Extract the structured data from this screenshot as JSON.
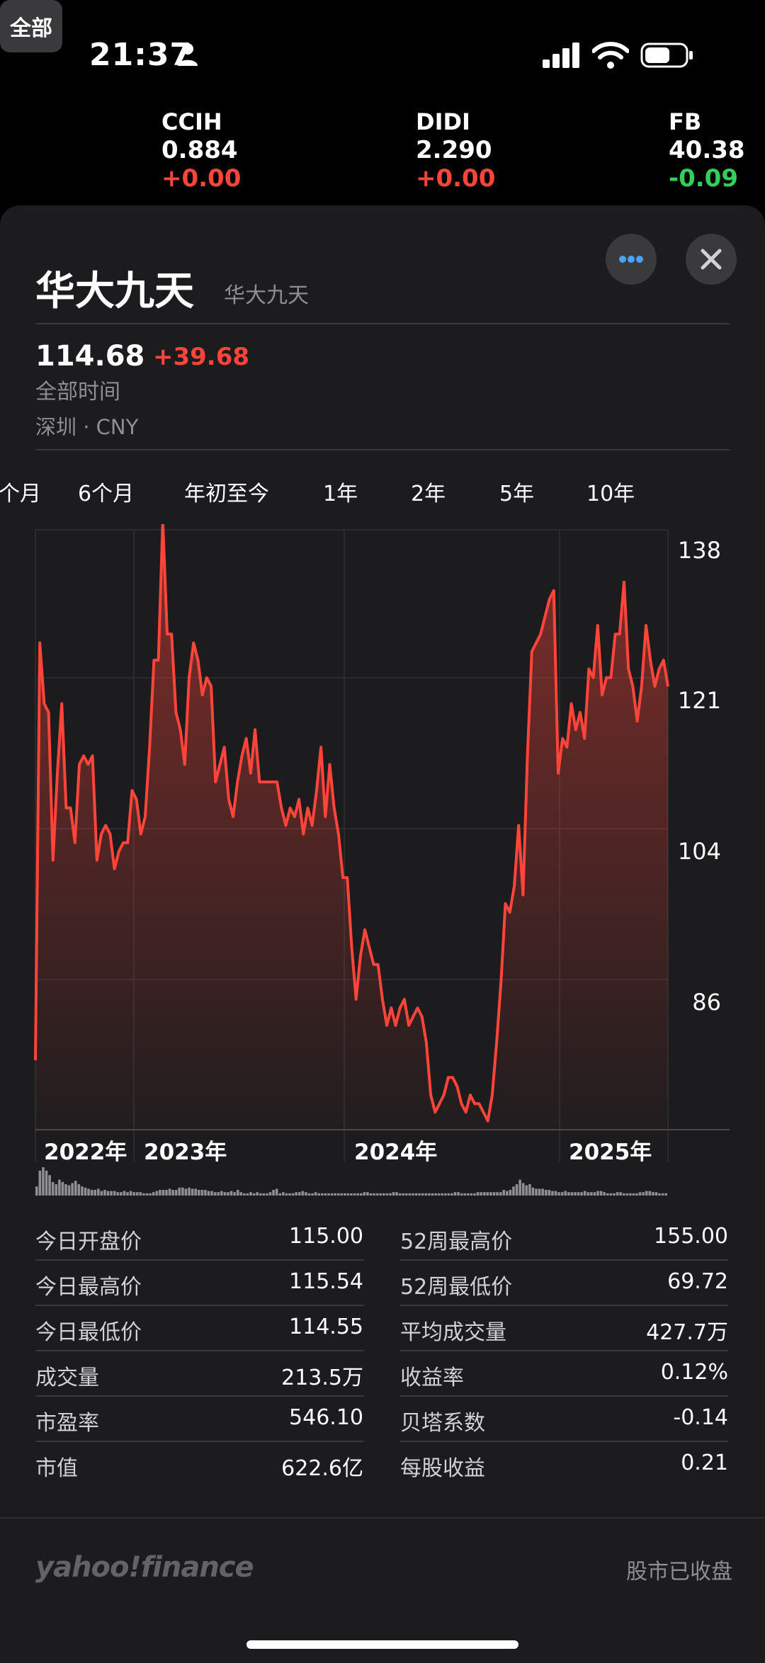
{
  "status_bar": {
    "time": "21:37"
  },
  "ticker": [
    {
      "symbol": "CCIH",
      "price": "0.884",
      "change": "+0.00",
      "color": "#ff453a"
    },
    {
      "symbol": "DIDI",
      "price": "2.290",
      "change": "+0.00",
      "color": "#ff453a"
    },
    {
      "symbol": "FB",
      "price": "40.38",
      "change": "-0.09",
      "color": "#30d158"
    }
  ],
  "stock": {
    "name": "华大九天",
    "subname": "华大九天",
    "price": "114.68",
    "change": "+39.68",
    "period": "全部时间",
    "exchange": "深圳 · CNY"
  },
  "tabs": [
    "个月",
    "6个月",
    "年初至今",
    "1年",
    "2年",
    "5年",
    "10年",
    "全部"
  ],
  "chart_data": {
    "type": "line",
    "x_tick_labels": [
      "2022年",
      "2023年",
      "2024年",
      "2025年"
    ],
    "y_tick_labels": [
      "138",
      "121",
      "104",
      "86"
    ],
    "ylim": [
      69,
      138
    ],
    "y": [
      77,
      125,
      118,
      117,
      100,
      110,
      118,
      106,
      106,
      102,
      111,
      112,
      111,
      112,
      100,
      103,
      104,
      103,
      99,
      101,
      102,
      102,
      108,
      107,
      103,
      105,
      113,
      123,
      123,
      139,
      126,
      126,
      117,
      115,
      111,
      121,
      125,
      123,
      119,
      121,
      120,
      109,
      111,
      113,
      107,
      105,
      109,
      112,
      114,
      110,
      115,
      109,
      109,
      109,
      109,
      109,
      106,
      104,
      106,
      105,
      107,
      103,
      106,
      104,
      108,
      113,
      105,
      111,
      106,
      103,
      98,
      98,
      90,
      84,
      89,
      92,
      90,
      88,
      88,
      84,
      81,
      83,
      81,
      83,
      84,
      81,
      82,
      83,
      82,
      79,
      73,
      71,
      72,
      73,
      75,
      75,
      74,
      72,
      71,
      73,
      72,
      72,
      71,
      70,
      73,
      79,
      86,
      95,
      94,
      97,
      104,
      96,
      112,
      124,
      125,
      126,
      128,
      130,
      131,
      110,
      114,
      113,
      118,
      115,
      117,
      114,
      122,
      121,
      127,
      119,
      121,
      121,
      126,
      126,
      132,
      122,
      120,
      116,
      120,
      127,
      123,
      120,
      122,
      123,
      120
    ],
    "fill_color": "#ff453a",
    "volume_bars": [
      8,
      22,
      25,
      22,
      18,
      12,
      10,
      14,
      12,
      10,
      9,
      11,
      13,
      10,
      8,
      7,
      6,
      5,
      5,
      6,
      4,
      5,
      4,
      4,
      4,
      3,
      3,
      4,
      3,
      4,
      3,
      3,
      3,
      2,
      2,
      2,
      3,
      4,
      5,
      5,
      5,
      6,
      5,
      5,
      7,
      7,
      6,
      7,
      6,
      6,
      5,
      5,
      5,
      4,
      4,
      3,
      3,
      4,
      3,
      3,
      4,
      3,
      5,
      3,
      2,
      2,
      3,
      2,
      3,
      2,
      2,
      2,
      3,
      5,
      6,
      2,
      3,
      2,
      2,
      2,
      3,
      3,
      4,
      3,
      2,
      2,
      3,
      2,
      2,
      2,
      2,
      2,
      2,
      2,
      2,
      2,
      2,
      2,
      2,
      2,
      2,
      3,
      3,
      2,
      2,
      2,
      2,
      2,
      2,
      2,
      3,
      3,
      2,
      2,
      2,
      2,
      2,
      2,
      2,
      2,
      2,
      2,
      2,
      2,
      2,
      2,
      2,
      2,
      2,
      3,
      3,
      2,
      2,
      2,
      2,
      2,
      3,
      3,
      3,
      3,
      3,
      3,
      3,
      3,
      5,
      4,
      5,
      8,
      10,
      14,
      11,
      9,
      10,
      7,
      6,
      6,
      6,
      5,
      5,
      4,
      4,
      3,
      3,
      4,
      3,
      3,
      3,
      3,
      3,
      4,
      3,
      3,
      3,
      4,
      4,
      3,
      2,
      2,
      2,
      3,
      3,
      2,
      2,
      2,
      2,
      2,
      3,
      3,
      4,
      4,
      3,
      3,
      2,
      2,
      2
    ]
  },
  "stats": {
    "left": [
      {
        "label": "今日开盘价",
        "value": "115.00"
      },
      {
        "label": "今日最高价",
        "value": "115.54"
      },
      {
        "label": "今日最低价",
        "value": "114.55"
      },
      {
        "label": "成交量",
        "value": "213.5万"
      },
      {
        "label": "市盈率",
        "value": "546.10"
      },
      {
        "label": "市值",
        "value": "622.6亿"
      }
    ],
    "right": [
      {
        "label": "52周最高价",
        "value": "155.00"
      },
      {
        "label": "52周最低价",
        "value": "69.72"
      },
      {
        "label": "平均成交量",
        "value": "427.7万"
      },
      {
        "label": "收益率",
        "value": "0.12%"
      },
      {
        "label": "贝塔系数",
        "value": "-0.14"
      },
      {
        "label": "每股收益",
        "value": "0.21"
      }
    ]
  },
  "footer": {
    "brand": "yahoo!finance",
    "market_status": "股市已收盘"
  },
  "colors": {
    "up": "#ff453a",
    "down": "#30d158",
    "accent": "#4aa3ff"
  }
}
